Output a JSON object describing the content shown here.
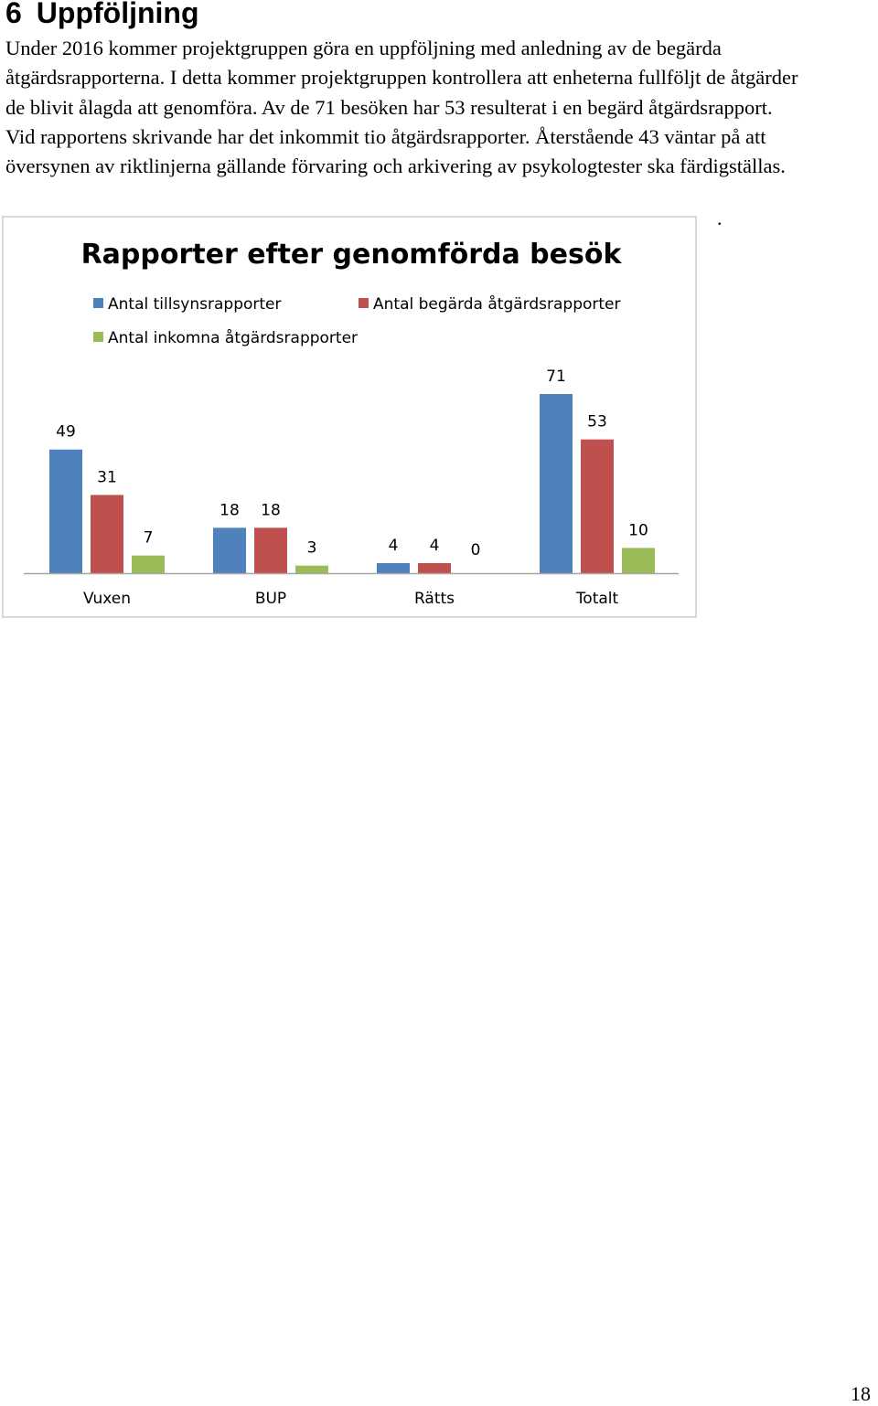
{
  "heading": {
    "number": "6",
    "title": "Uppföljning"
  },
  "paragraph_lines": [
    "Under 2016 kommer projektgruppen göra en uppföljning med anledning av de begärda",
    "åtgärdsrapporterna. I detta kommer projektgruppen kontrollera att enheterna fullföljt de åtgärder",
    "de blivit ålagda att genomföra. Av de 71 besöken har 53 resulterat i en begärd åtgärdsrapport.",
    "Vid rapportens skrivande har det inkommit tio åtgärdsrapporter. Återstående 43 väntar på att",
    "översynen av riktlinjerna gällande förvaring och arkivering av psykologtester ska färdigställas."
  ],
  "stray_dot": ".",
  "page_number": "18",
  "chart_data": {
    "type": "bar",
    "title": "Rapporter efter genomförda besök",
    "xlabel": "",
    "ylabel": "",
    "categories": [
      "Vuxen",
      "BUP",
      "Rätts",
      "Totalt"
    ],
    "series": [
      {
        "name": "Antal tillsynsrapporter",
        "color": "#4f81bd",
        "values": [
          49,
          18,
          4,
          71
        ]
      },
      {
        "name": "Antal begärda åtgärdsrapporter",
        "color": "#c0504d",
        "values": [
          31,
          18,
          4,
          53
        ]
      },
      {
        "name": "Antal inkomna åtgärdsrapporter",
        "color": "#9bbb59",
        "values": [
          7,
          3,
          0,
          10
        ]
      }
    ],
    "ylim": [
      0,
      71
    ],
    "grid": false,
    "y_axis_visible": false,
    "data_labels": true,
    "legend": "top"
  }
}
